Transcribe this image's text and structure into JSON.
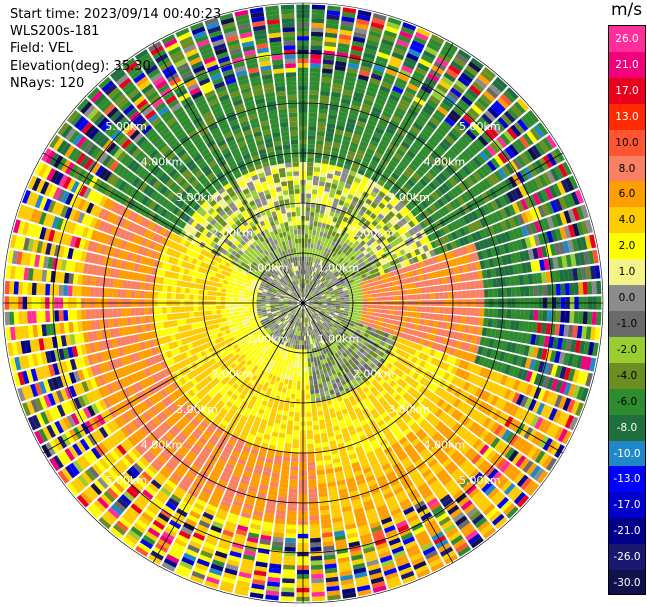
{
  "header": {
    "start_time": "Start time: 2023/09/14 00:40:23",
    "instrument": "WLS200s-181",
    "field": "Field: VEL",
    "elevation": "Elevation(deg): 35.30",
    "nrays": "NRays: 120"
  },
  "colorbar": {
    "title": "m/s",
    "ticks": [
      "26.0",
      "21.0",
      "17.0",
      "13.0",
      "10.0",
      "8.0",
      "6.0",
      "4.0",
      "2.0",
      "1.0",
      "0.0",
      "-1.0",
      "-2.0",
      "-4.0",
      "-6.0",
      "-8.0",
      "-10.0",
      "-13.0",
      "-17.0",
      "-21.0",
      "-26.0",
      "-30.0"
    ],
    "colors": [
      "#ff2e9a",
      "#f0007a",
      "#e8001c",
      "#ff2a00",
      "#ff5533",
      "#fa8064",
      "#ff9e00",
      "#ffcc00",
      "#ffff00",
      "#f4f48a",
      "#8c8c8c",
      "#6a6a6a",
      "#9acd32",
      "#6b8e23",
      "#2e8b2e",
      "#1f6f3f",
      "#1e88c8",
      "#0000ff",
      "#0000cd",
      "#00008b",
      "#191970",
      "#10104a"
    ]
  },
  "chart_data": {
    "type": "heatmap",
    "subtype": "polar PPI",
    "field": "VEL",
    "unit": "m/s",
    "n_rays": 120,
    "vmin": -30.0,
    "vmax": 26.0,
    "range_ring_labels": [
      "1.00km",
      "2.00km",
      "3.00km",
      "4.00km",
      "5.00km"
    ],
    "max_range_km": 6.0
  }
}
